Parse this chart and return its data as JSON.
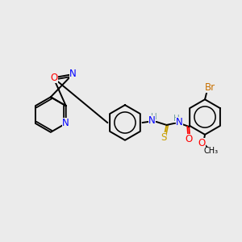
{
  "background_color": "#ebebeb",
  "bond_color": "#000000",
  "atom_colors": {
    "N": "#0000ff",
    "O": "#ff0000",
    "S": "#c8a000",
    "Br": "#c87000",
    "C": "#000000",
    "H": "#6fa0a0"
  },
  "title": "",
  "figsize": [
    3.0,
    3.0
  ],
  "dpi": 100
}
